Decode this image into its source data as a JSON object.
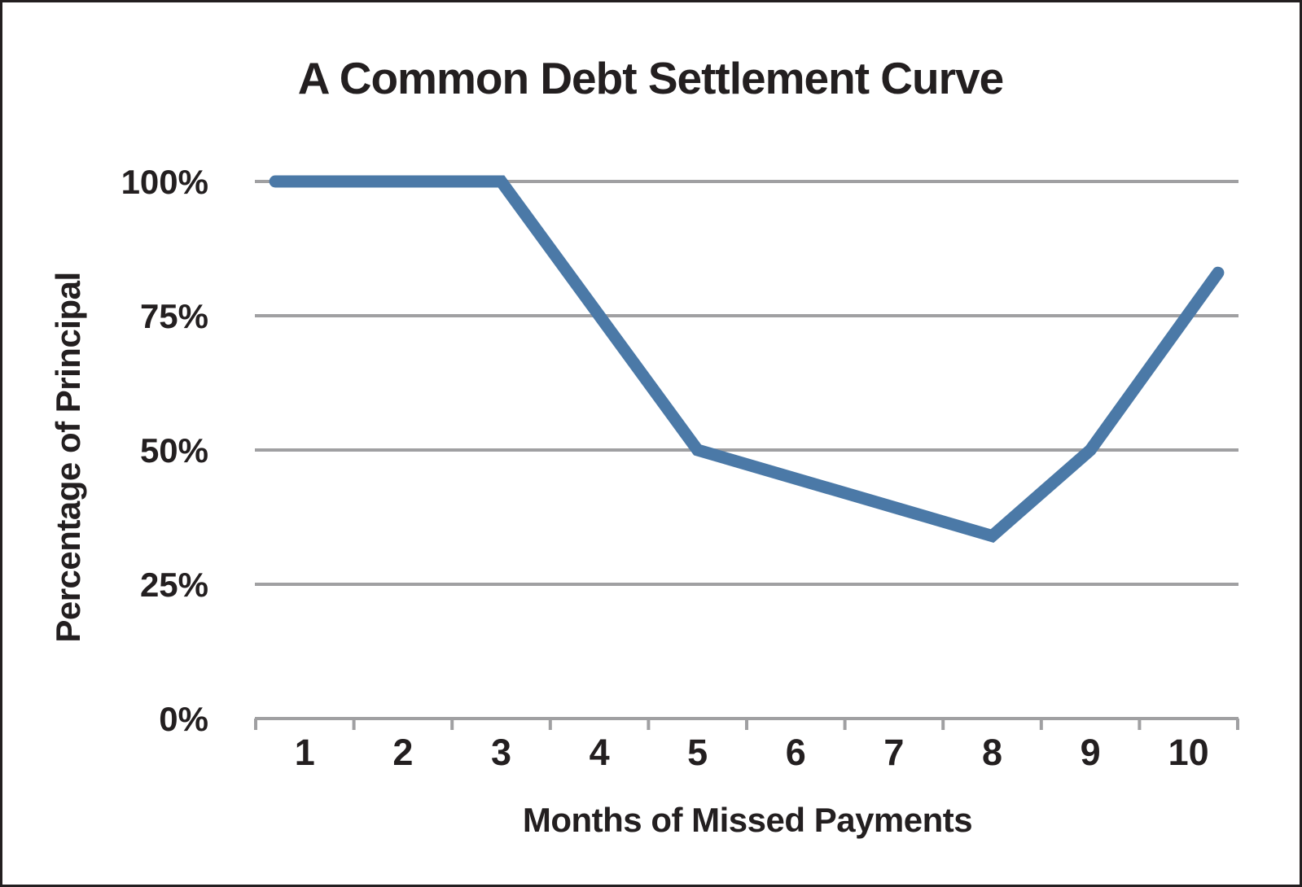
{
  "chart_data": {
    "type": "line",
    "title": "A Common Debt Settlement Curve",
    "xlabel": "Months of Missed Payments",
    "ylabel": "Percentage of Principal",
    "x_tick_labels": [
      "1",
      "2",
      "3",
      "4",
      "5",
      "6",
      "7",
      "8",
      "9",
      "10"
    ],
    "x_tick_values": [
      1,
      2,
      3,
      4,
      5,
      6,
      7,
      8,
      9,
      10
    ],
    "y_tick_labels": [
      "100%",
      "75%",
      "50%",
      "25%",
      "0%"
    ],
    "y_tick_values": [
      100,
      75,
      50,
      25,
      0
    ],
    "xlim": [
      0.5,
      10.5
    ],
    "ylim": [
      0,
      100
    ],
    "grid": "horizontal gridlines at each y tick, no vertical gridlines",
    "legend": "none",
    "series": [
      {
        "name": "settlement-percentage-curve",
        "x": [
          0.7,
          3,
          5,
          8,
          9,
          10.3
        ],
        "y": [
          100,
          100,
          50,
          34,
          50,
          83
        ]
      }
    ],
    "colors": {
      "line": "#4b79a7",
      "gridline": "#a0a0a2",
      "axis": "#a0a0a2",
      "text": "#231f20",
      "border": "#231f20",
      "background": "#ffffff"
    }
  }
}
